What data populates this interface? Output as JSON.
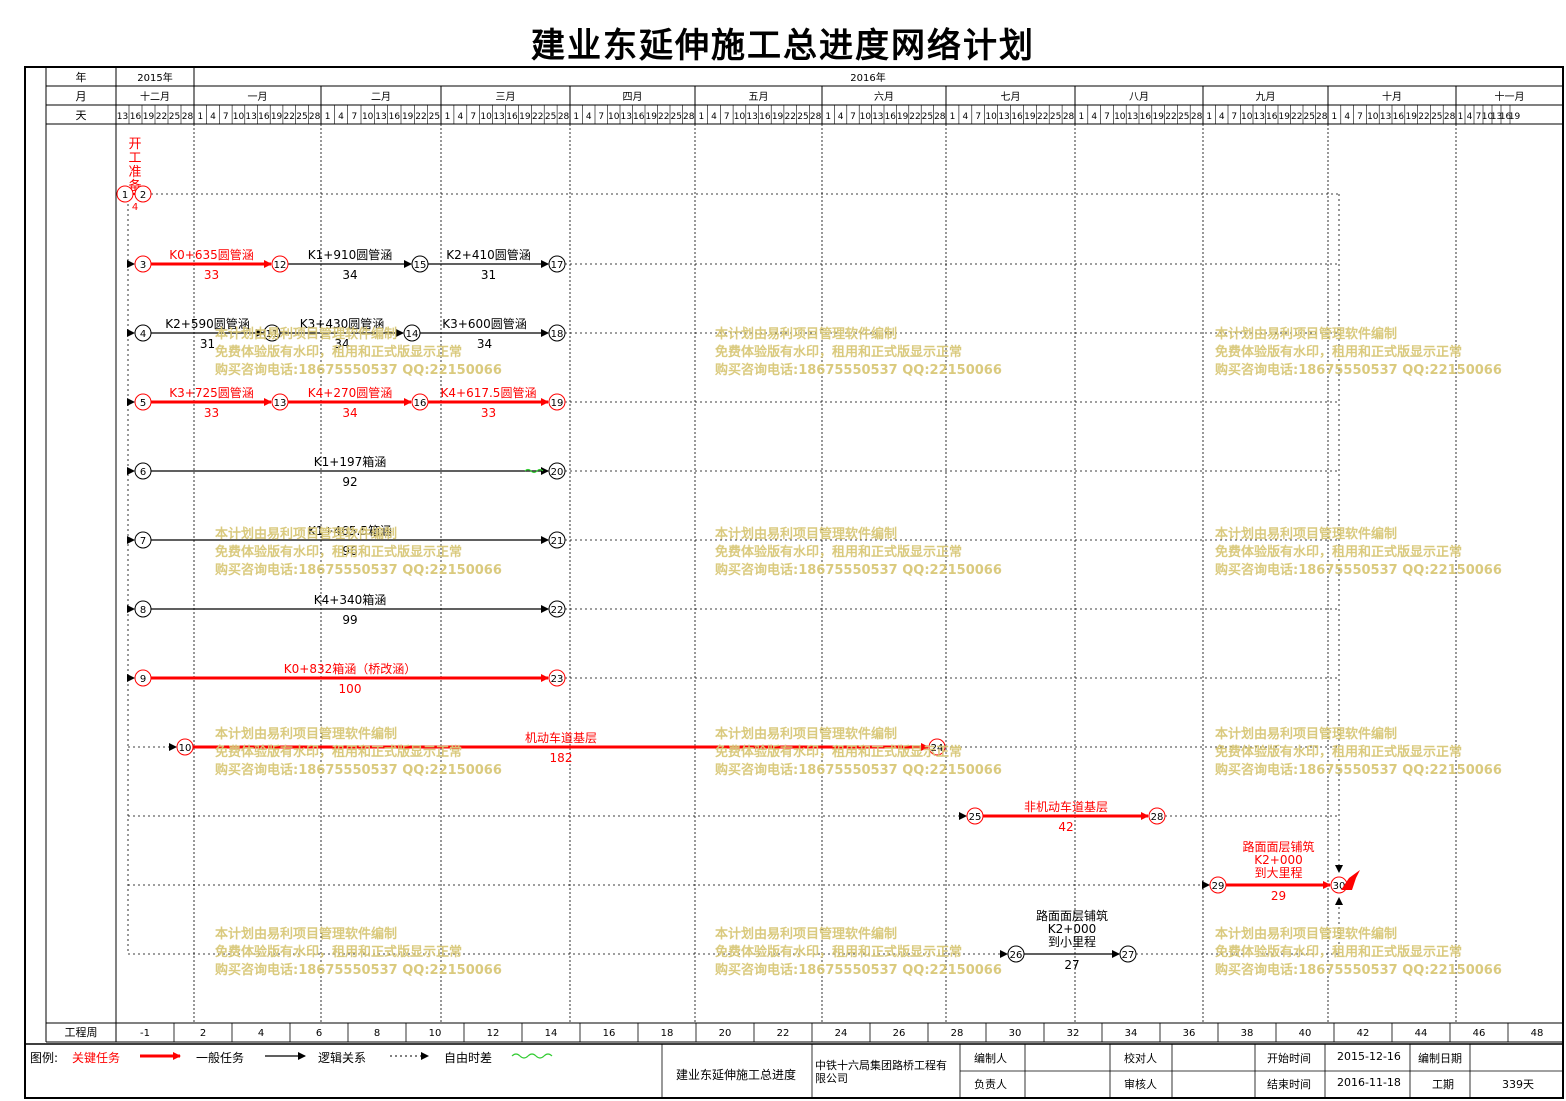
{
  "title": "建业东延伸施工总进度网络计划",
  "header": {
    "row_labels": [
      "年",
      "月",
      "天"
    ],
    "years": [
      "2015年",
      "2016年"
    ],
    "months": [
      "十二月",
      "一月",
      "二月",
      "三月",
      "四月",
      "五月",
      "六月",
      "七月",
      "八月",
      "九月",
      "十月",
      "十一月"
    ],
    "days": {
      "dec": [
        "13",
        "16",
        "19",
        "22",
        "25",
        "28"
      ],
      "full31": [
        "1",
        "4",
        "7",
        "10",
        "13",
        "16",
        "19",
        "22",
        "25",
        "28"
      ],
      "feb": [
        "1",
        "4",
        "7",
        "10",
        "13",
        "16",
        "19",
        "22",
        "25"
      ],
      "nov": [
        "1",
        "4",
        "7",
        "10",
        "13",
        "16",
        "19"
      ]
    }
  },
  "weeks_label": "工程周",
  "weeks": [
    "-1",
    "2",
    "4",
    "6",
    "8",
    "10",
    "12",
    "14",
    "16",
    "18",
    "20",
    "22",
    "24",
    "26",
    "28",
    "30",
    "32",
    "34",
    "36",
    "38",
    "40",
    "42",
    "44",
    "46",
    "48"
  ],
  "start_task": {
    "label": "开工准备",
    "duration": "4",
    "nodes": [
      "1",
      "2"
    ]
  },
  "tasks": [
    {
      "from": "3",
      "to": "12",
      "label": "K0+635圆管涵",
      "dur": "33",
      "critical": true
    },
    {
      "from": "12",
      "to": "15",
      "label": "K1+910圆管涵",
      "dur": "34",
      "critical": false
    },
    {
      "from": "15",
      "to": "17",
      "label": "K2+410圆管涵",
      "dur": "31",
      "critical": false
    },
    {
      "from": "4",
      "to": "11",
      "label": "K2+590圆管涵",
      "dur": "31",
      "critical": false
    },
    {
      "from": "11",
      "to": "14",
      "label": "K3+430圆管涵",
      "dur": "34",
      "critical": false
    },
    {
      "from": "14",
      "to": "18",
      "label": "K3+600圆管涵",
      "dur": "34",
      "critical": false
    },
    {
      "from": "5",
      "to": "13",
      "label": "K3+725圆管涵",
      "dur": "33",
      "critical": true
    },
    {
      "from": "13",
      "to": "16",
      "label": "K4+270圆管涵",
      "dur": "34",
      "critical": true
    },
    {
      "from": "16",
      "to": "19",
      "label": "K4+617.5圆管涵",
      "dur": "33",
      "critical": true
    },
    {
      "from": "6",
      "to": "20",
      "label": "K1+197箱涵",
      "dur": "92",
      "critical": false
    },
    {
      "from": "7",
      "to": "21",
      "label": "K1+465.5箱涵",
      "dur": "96",
      "critical": false
    },
    {
      "from": "8",
      "to": "22",
      "label": "K4+340箱涵",
      "dur": "99",
      "critical": false
    },
    {
      "from": "9",
      "to": "23",
      "label": "K0+832箱涵（桥改涵）",
      "dur": "100",
      "critical": true
    },
    {
      "from": "10",
      "to": "24",
      "label": "机动车道基层",
      "dur": "182",
      "critical": true
    },
    {
      "from": "25",
      "to": "28",
      "label": "非机动车道基层",
      "dur": "42",
      "critical": true
    },
    {
      "from": "29",
      "to": "30",
      "label": "路面面层铺筑K2+000到大里程",
      "dur": "29",
      "critical": true
    },
    {
      "from": "26",
      "to": "27",
      "label": "路面面层铺筑K2+000到小里程",
      "dur": "27",
      "critical": false
    }
  ],
  "watermark": {
    "line1": "本计划由易利项目管理软件编制",
    "line2": "免费体验版有水印，租用和正式版显示正常",
    "line3": "购买咨询电话:18675550537 QQ:22150066"
  },
  "legend": {
    "label": "图例:",
    "critical": "关键任务",
    "general": "一般任务",
    "logic": "逻辑关系",
    "float": "自由时差"
  },
  "info": {
    "project_name": "建业东延伸施工总进度",
    "company": "中铁十六局集团路桥工程有限公司",
    "editor_label": "编制人",
    "checker_label": "校对人",
    "responsible_label": "负责人",
    "reviewer_label": "审核人",
    "start_label": "开始时间",
    "start_value": "2015-12-16",
    "end_label": "结束时间",
    "end_value": "2016-11-18",
    "date_label": "编制日期",
    "duration_label": "工期",
    "duration_value": "339天"
  },
  "colors": {
    "critical": "#ff0000",
    "general": "#000000",
    "float": "#33cc33",
    "watermark": "#d9c878"
  }
}
